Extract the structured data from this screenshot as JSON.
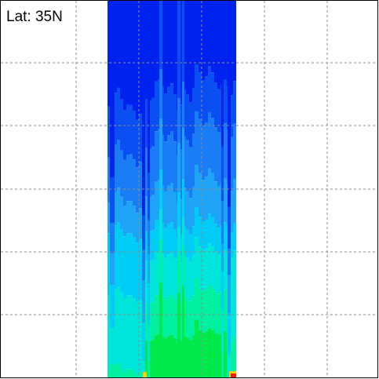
{
  "chart_data": {
    "type": "heatmap",
    "annotation": "Lat: 35N",
    "grid": true,
    "grid_style": "dotted",
    "colors": {
      "background": "#ffffff",
      "frame": "#000000",
      "grid": "#8c8c8c",
      "level_1": "#0022ee",
      "level_2": "#0a4ff2",
      "level_3": "#1a7df5",
      "level_4": "#1fa3f7",
      "level_5": "#00ccf5",
      "level_6": "#00e5d9",
      "level_7": "#00f0a0",
      "level_8": "#00e84a",
      "hot_spot": "#ee2000",
      "warm_spot": "#f5d000"
    }
  }
}
